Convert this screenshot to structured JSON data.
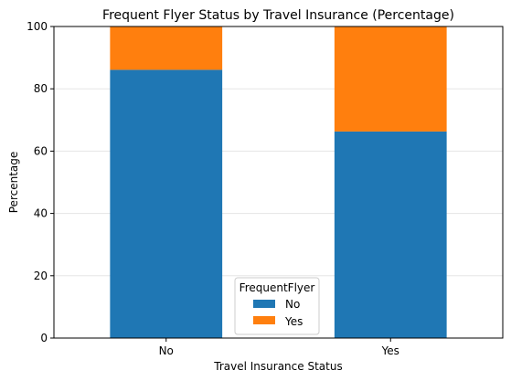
{
  "chart_data": {
    "type": "bar",
    "stacked": true,
    "title": "Frequent Flyer Status by Travel Insurance (Percentage)",
    "xlabel": "Travel Insurance Status",
    "ylabel": "Percentage",
    "categories": [
      "No",
      "Yes"
    ],
    "ylim": [
      0,
      100
    ],
    "yticks": [
      "0",
      "20",
      "40",
      "60",
      "80",
      "100"
    ],
    "grid": "y-horizontal",
    "legend": {
      "title": "FrequentFlyer",
      "placement": "bottom-center"
    },
    "series": [
      {
        "name": "No",
        "color": "#1f77b4",
        "values": [
          86.1,
          66.3
        ]
      },
      {
        "name": "Yes",
        "color": "#ff7f0e",
        "values": [
          13.9,
          33.7
        ]
      }
    ]
  }
}
